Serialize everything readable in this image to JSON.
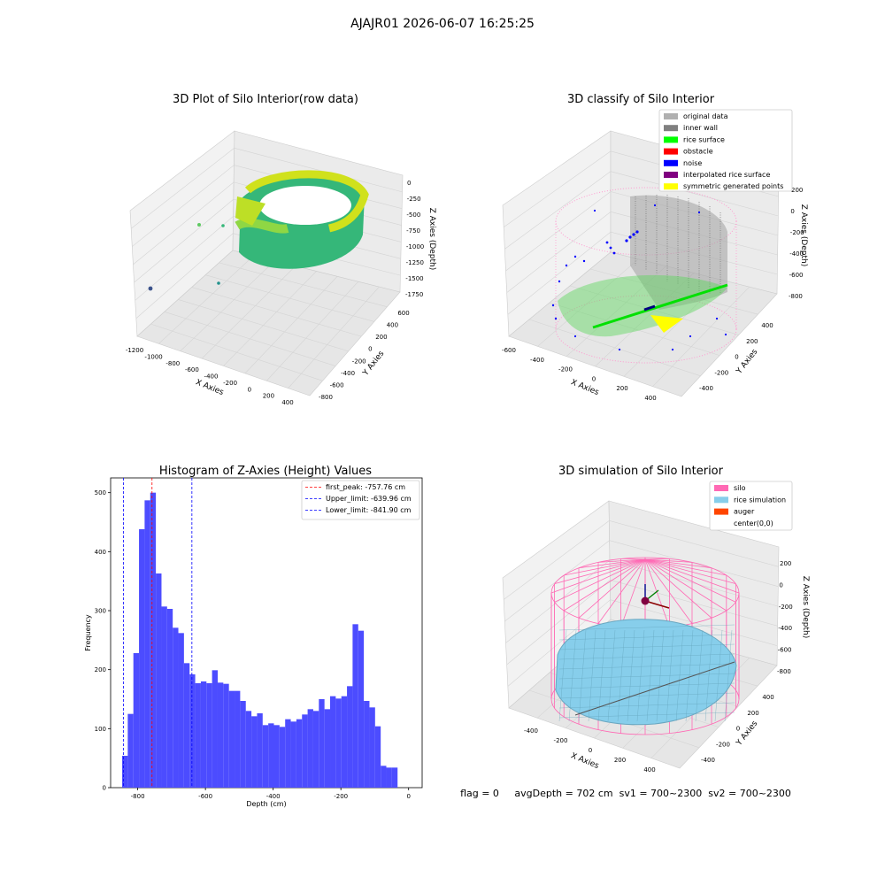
{
  "figure": {
    "suptitle": "AJAJR01 2026-06-07 16:25:25",
    "status_line": "flag = 0     avgDepth = 702 cm  sv1 = 700~2300  sv2 = 700~2300"
  },
  "panels": {
    "raw": {
      "title": "3D Plot of Silo Interior(row data)",
      "xlabel": "X Axies",
      "ylabel": "Y Axies",
      "zlabel": "Z Axies (Depth)",
      "xticks": [
        "-1200",
        "-1000",
        "-800",
        "-600",
        "-400",
        "-200",
        "0",
        "200",
        "400"
      ],
      "yticks": [
        "-800",
        "-600",
        "-400",
        "-200",
        "0",
        "200",
        "400",
        "600"
      ],
      "zticks": [
        "0",
        "-250",
        "-500",
        "-750",
        "-1000",
        "-1250",
        "-1500",
        "-1750"
      ]
    },
    "classify": {
      "title": "3D classify of Silo Interior",
      "xlabel": "X Axies",
      "ylabel": "Y Axies",
      "zlabel": "Z Axies (Depth)",
      "xticks": [
        "-600",
        "-400",
        "-200",
        "0",
        "200",
        "400"
      ],
      "yticks": [
        "-400",
        "-200",
        "0",
        "200",
        "400"
      ],
      "zticks": [
        "200",
        "0",
        "-200",
        "-400",
        "-600",
        "-800"
      ],
      "legend": [
        {
          "label": "original data",
          "color": "#b0b0b0"
        },
        {
          "label": "inner wall",
          "color": "#808080"
        },
        {
          "label": "rice surface",
          "color": "#00ff00"
        },
        {
          "label": "obstacle",
          "color": "#ff0000"
        },
        {
          "label": "noise",
          "color": "#0000ff"
        },
        {
          "label": "interpolated rice surface",
          "color": "#800080"
        },
        {
          "label": "symmetric generated points",
          "color": "#ffff00"
        }
      ]
    },
    "simulation": {
      "title": "3D simulation of Silo Interior",
      "xlabel": "X Axies",
      "ylabel": "Y Axies",
      "zlabel": "Z Axies (Depth)",
      "xticks": [
        "-400",
        "-200",
        "0",
        "200",
        "400"
      ],
      "yticks": [
        "-400",
        "-200",
        "0",
        "200",
        "400"
      ],
      "zticks": [
        "200",
        "0",
        "-200",
        "-400",
        "-600",
        "-800"
      ],
      "legend": [
        {
          "label": "silo",
          "color": "#ff69b4"
        },
        {
          "label": "rice simulation",
          "color": "#87ceeb"
        },
        {
          "label": "auger",
          "color": "#ff4500"
        },
        {
          "label": "center(0,0)",
          "color": "#ffffff"
        }
      ]
    }
  },
  "chart_data": {
    "type": "bar",
    "title": "Histogram of Z-Axies (Height) Values",
    "xlabel": "Depth (cm)",
    "ylabel": "Frequency",
    "xlim": [
      -880,
      40
    ],
    "ylim": [
      0,
      525
    ],
    "xticks": [
      -800,
      -600,
      -400,
      -200,
      0
    ],
    "yticks": [
      0,
      100,
      200,
      300,
      400,
      500
    ],
    "bin_start": -846,
    "bin_width": 16.6,
    "values": [
      54,
      125,
      228,
      438,
      487,
      500,
      363,
      307,
      303,
      271,
      262,
      211,
      192,
      177,
      180,
      177,
      199,
      178,
      176,
      164,
      164,
      147,
      130,
      121,
      126,
      106,
      109,
      106,
      103,
      116,
      112,
      116,
      124,
      133,
      130,
      150,
      133,
      155,
      151,
      155,
      172,
      277,
      266,
      147,
      136,
      104,
      37,
      34,
      34
    ],
    "vlines": [
      {
        "label": "first_peak: -757.76 cm",
        "x": -757.76,
        "color": "#ff0000"
      },
      {
        "label": "Upper_limit: -639.96 cm",
        "x": -639.96,
        "color": "#0000ff"
      },
      {
        "label": "Lower_limit: -841.90 cm",
        "x": -841.9,
        "color": "#0000ff"
      }
    ],
    "bar_color": "#4c4cff",
    "legend_position": "top-right"
  }
}
